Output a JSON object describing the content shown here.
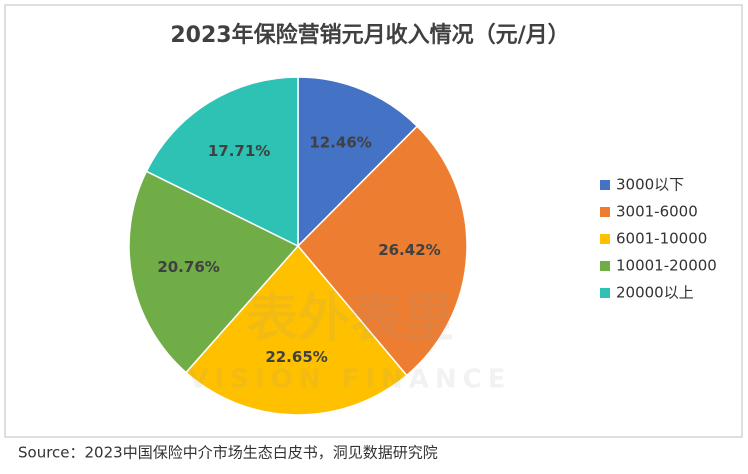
{
  "chart_data": {
    "type": "pie",
    "title": "2023年保险营销元月收入情况（元/月）",
    "categories": [
      "3000以下",
      "3001-6000",
      "6001-10000",
      "10001-20000",
      "20000以上"
    ],
    "values": [
      12.46,
      26.42,
      22.65,
      20.76,
      17.71
    ],
    "value_labels": [
      "12.46%",
      "26.42%",
      "22.65%",
      "20.76%",
      "17.71%"
    ],
    "colors": [
      "#4472c4",
      "#ed7d31",
      "#ffc000",
      "#70ad47",
      "#2ec2b4"
    ],
    "legend": "right"
  },
  "watermark": {
    "name": "表外表里",
    "subtitle": "VISION FINANCE"
  },
  "source": "Source：2023中国保险中介市场生态白皮书，洞见数据研究院"
}
